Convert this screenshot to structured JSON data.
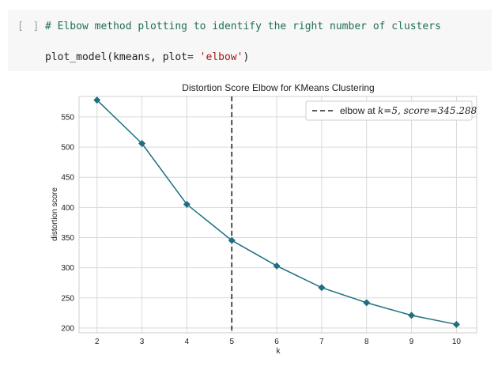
{
  "cell": {
    "run_indicator": "[ ]",
    "comment": "# Elbow method plotting to identify the right number of clusters",
    "code_prefix": "plot_model(kmeans, plot= ",
    "code_string": "'elbow'",
    "code_suffix": ")"
  },
  "colors": {
    "series": "#1f6f82",
    "elbow_line": "#222222",
    "grid": "#d9d9d9",
    "frame": "#cfcfcf"
  },
  "chart_data": {
    "type": "line",
    "title": "Distortion Score Elbow for KMeans Clustering",
    "xlabel": "k",
    "ylabel": "distortion score",
    "x": [
      2,
      3,
      4,
      5,
      6,
      7,
      8,
      9,
      10
    ],
    "values": [
      578,
      506,
      405,
      345.288,
      303,
      267,
      242,
      221,
      206
    ],
    "xlim": [
      1.6,
      10.45
    ],
    "ylim": [
      192,
      584
    ],
    "x_ticks": [
      2,
      3,
      4,
      5,
      6,
      7,
      8,
      9,
      10
    ],
    "y_ticks": [
      200,
      250,
      300,
      350,
      400,
      450,
      500,
      550
    ],
    "elbow_x": 5,
    "legend": {
      "placement": "top-right",
      "prefix": "elbow at ",
      "k_part": "k=5, ",
      "score_part": "score=345.288"
    },
    "grid": true
  }
}
